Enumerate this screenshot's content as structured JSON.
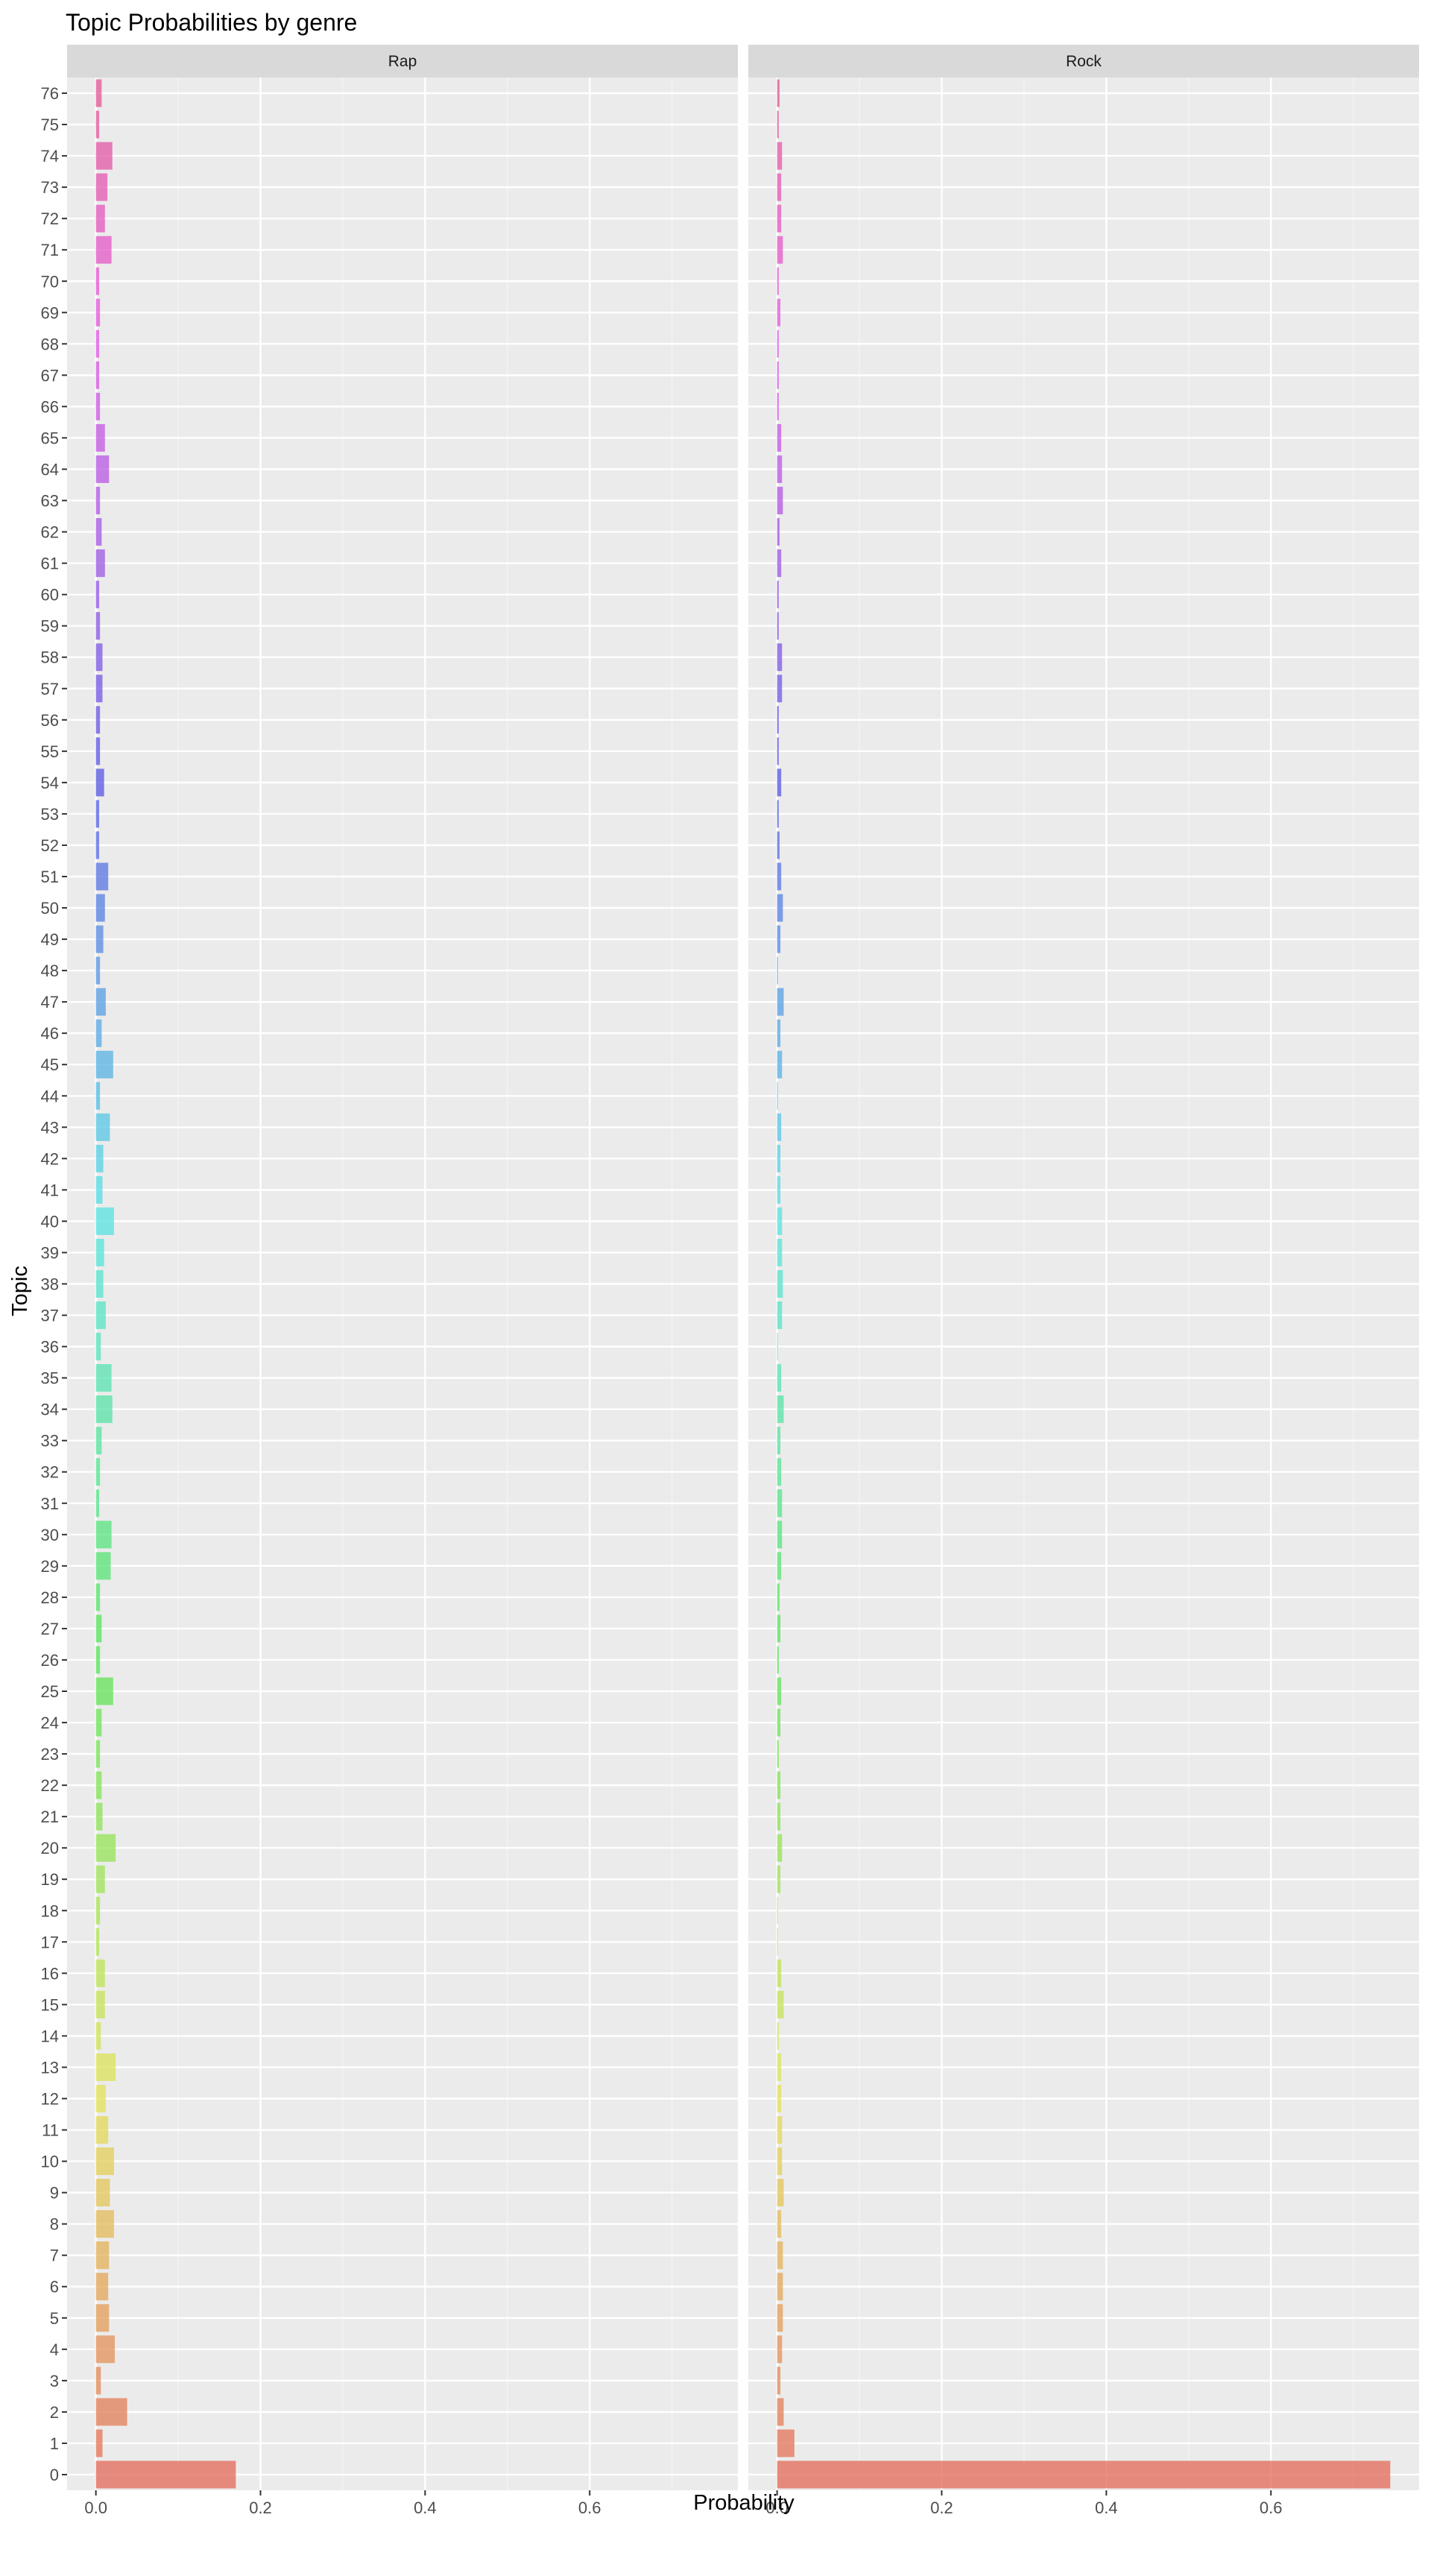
{
  "chart_data": {
    "type": "bar",
    "orientation": "horizontal",
    "faceted": true,
    "title": "Topic Probabilities by genre",
    "xlabel": "Probability",
    "ylabel": "Topic",
    "xlim": [
      -0.035,
      0.78
    ],
    "x_ticks": [
      "0.0",
      "0.2",
      "0.4",
      "0.6"
    ],
    "x_tick_values": [
      0,
      0.2,
      0.4,
      0.6
    ],
    "grid": true,
    "legend": "none",
    "categories": [
      "0",
      "1",
      "2",
      "3",
      "4",
      "5",
      "6",
      "7",
      "8",
      "9",
      "10",
      "11",
      "12",
      "13",
      "14",
      "15",
      "16",
      "17",
      "18",
      "19",
      "20",
      "21",
      "22",
      "23",
      "24",
      "25",
      "26",
      "27",
      "28",
      "29",
      "30",
      "31",
      "32",
      "33",
      "34",
      "35",
      "36",
      "37",
      "38",
      "39",
      "40",
      "41",
      "42",
      "43",
      "44",
      "45",
      "46",
      "47",
      "48",
      "49",
      "50",
      "51",
      "52",
      "53",
      "54",
      "55",
      "56",
      "57",
      "58",
      "59",
      "60",
      "61",
      "62",
      "63",
      "64",
      "65",
      "66",
      "67",
      "68",
      "69",
      "70",
      "71",
      "72",
      "73",
      "74",
      "75",
      "76"
    ],
    "series": [
      {
        "name": "Rap",
        "values": [
          0.17,
          0.008,
          0.038,
          0.006,
          0.023,
          0.016,
          0.015,
          0.016,
          0.022,
          0.017,
          0.022,
          0.015,
          0.012,
          0.024,
          0.006,
          0.011,
          0.011,
          0.004,
          0.005,
          0.011,
          0.024,
          0.008,
          0.007,
          0.005,
          0.007,
          0.021,
          0.005,
          0.007,
          0.005,
          0.018,
          0.019,
          0.004,
          0.005,
          0.007,
          0.02,
          0.019,
          0.006,
          0.012,
          0.009,
          0.01,
          0.022,
          0.008,
          0.009,
          0.017,
          0.005,
          0.021,
          0.007,
          0.012,
          0.005,
          0.009,
          0.011,
          0.015,
          0.004,
          0.004,
          0.01,
          0.005,
          0.005,
          0.008,
          0.008,
          0.005,
          0.004,
          0.011,
          0.007,
          0.005,
          0.016,
          0.011,
          0.005,
          0.004,
          0.004,
          0.005,
          0.004,
          0.019,
          0.011,
          0.014,
          0.02,
          0.004,
          0.007
        ]
      },
      {
        "name": "Rock",
        "values": [
          0.745,
          0.021,
          0.008,
          0.004,
          0.006,
          0.007,
          0.007,
          0.007,
          0.005,
          0.008,
          0.006,
          0.006,
          0.005,
          0.005,
          0.002,
          0.008,
          0.005,
          0.001,
          0.001,
          0.004,
          0.006,
          0.004,
          0.004,
          0.002,
          0.004,
          0.005,
          0.002,
          0.004,
          0.003,
          0.005,
          0.006,
          0.006,
          0.005,
          0.004,
          0.008,
          0.005,
          0.001,
          0.006,
          0.007,
          0.006,
          0.006,
          0.004,
          0.004,
          0.005,
          0.001,
          0.006,
          0.004,
          0.008,
          0.001,
          0.004,
          0.007,
          0.005,
          0.003,
          0.002,
          0.005,
          0.002,
          0.002,
          0.006,
          0.006,
          0.002,
          0.002,
          0.005,
          0.003,
          0.007,
          0.006,
          0.005,
          0.002,
          0.002,
          0.002,
          0.004,
          0.002,
          0.007,
          0.005,
          0.005,
          0.006,
          0.002,
          0.003
        ]
      }
    ]
  }
}
